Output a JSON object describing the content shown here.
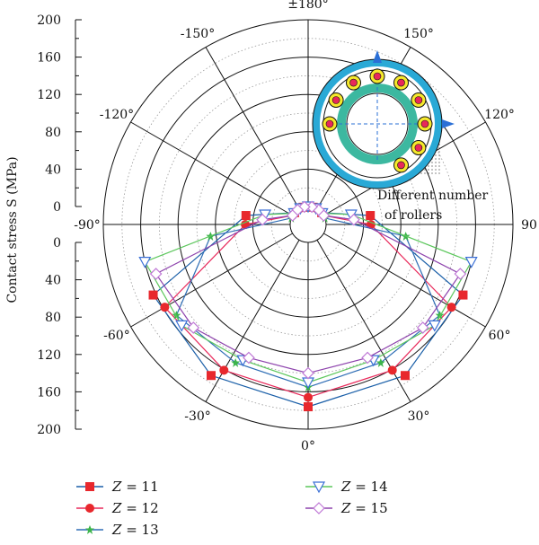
{
  "chart_data": {
    "type": "polar-line",
    "title": "",
    "ylabel": "Contact stress S (MPa)",
    "radial_range": [
      0,
      200
    ],
    "radial_ticks": [
      0,
      40,
      80,
      120,
      160,
      200
    ],
    "radial_tick_labels_upper": [
      "200",
      "160",
      "120",
      "80",
      "40",
      "0"
    ],
    "radial_tick_labels_lower": [
      "0",
      "40",
      "80",
      "120",
      "160",
      "200"
    ],
    "angle_labels": [
      {
        "angle": 0,
        "text": "0°"
      },
      {
        "angle": 30,
        "text": "30°"
      },
      {
        "angle": 60,
        "text": "60°"
      },
      {
        "angle": 90,
        "text": "90"
      },
      {
        "angle": 120,
        "text": "120°"
      },
      {
        "angle": 150,
        "text": "150°"
      },
      {
        "angle": 180,
        "text": "±180°"
      },
      {
        "angle": -150,
        "text": "-150°"
      },
      {
        "angle": -120,
        "text": "-120°"
      },
      {
        "angle": -90,
        "text": "-90°"
      },
      {
        "angle": -60,
        "text": "-60°"
      },
      {
        "angle": -30,
        "text": "-30°"
      }
    ],
    "annotation": [
      "Different number",
      "of rollers"
    ],
    "series": [
      {
        "name": "Z = 11",
        "color": "#1a5fa8",
        "marker": "square",
        "marker_color": "#e8282d",
        "points": [
          [
            0,
            176
          ],
          [
            32.7,
            173
          ],
          [
            65.5,
            163
          ],
          [
            98.2,
            48
          ],
          [
            130.9,
            0
          ],
          [
            163.6,
            0
          ],
          [
            -163.6,
            0
          ],
          [
            -130.9,
            0
          ],
          [
            -98.2,
            48
          ],
          [
            -65.5,
            163
          ],
          [
            -32.7,
            173
          ]
        ]
      },
      {
        "name": "Z = 12",
        "color": "#e8285a",
        "marker": "circle",
        "marker_color": "#e8282d",
        "points": [
          [
            0,
            166
          ],
          [
            30,
            161
          ],
          [
            60,
            158
          ],
          [
            90,
            48
          ],
          [
            120,
            0
          ],
          [
            150,
            0
          ],
          [
            180,
            0
          ],
          [
            -150,
            0
          ],
          [
            -120,
            0
          ],
          [
            -90,
            48
          ],
          [
            -60,
            158
          ],
          [
            -30,
            161
          ]
        ]
      },
      {
        "name": "Z = 13",
        "color": "#2e6db5",
        "marker": "star",
        "marker_color": "#3cb44b",
        "points": [
          [
            0,
            155
          ],
          [
            27.7,
            148
          ],
          [
            55.4,
            152
          ],
          [
            83.1,
            86
          ],
          [
            110.8,
            0
          ],
          [
            138.5,
            0
          ],
          [
            166.2,
            0
          ],
          [
            -166.2,
            0
          ],
          [
            -138.5,
            0
          ],
          [
            -110.8,
            0
          ],
          [
            -83.1,
            86
          ],
          [
            -55.4,
            152
          ],
          [
            -27.7,
            148
          ]
        ]
      },
      {
        "name": "Z = 14",
        "color": "#5cc75c",
        "marker": "triangle-down",
        "marker_color": "#3a6fd6",
        "points": [
          [
            0,
            150
          ],
          [
            25.7,
            142
          ],
          [
            51.4,
            154
          ],
          [
            77.1,
            160
          ],
          [
            102.9,
            28
          ],
          [
            128.6,
            0
          ],
          [
            154.3,
            0
          ],
          [
            180,
            0
          ],
          [
            -154.3,
            0
          ],
          [
            -128.6,
            0
          ],
          [
            -102.9,
            28
          ],
          [
            -77.1,
            160
          ],
          [
            -51.4,
            154
          ],
          [
            -25.7,
            142
          ]
        ]
      },
      {
        "name": "Z = 15",
        "color": "#8e44ad",
        "marker": "diamond",
        "marker_color": "#c07ad6",
        "points": [
          [
            0,
            140
          ],
          [
            24,
            137
          ],
          [
            48,
            146
          ],
          [
            72,
            152
          ],
          [
            96,
            30
          ],
          [
            120,
            0
          ],
          [
            144,
            0
          ],
          [
            168,
            0
          ],
          [
            -168,
            0
          ],
          [
            -144,
            0
          ],
          [
            -120,
            0
          ],
          [
            -96,
            30
          ],
          [
            -72,
            152
          ],
          [
            -48,
            146
          ],
          [
            -24,
            137
          ]
        ]
      }
    ],
    "legend": [
      "Z = 11",
      "Z = 12",
      "Z = 13",
      "Z = 14",
      "Z = 15"
    ],
    "legend_placement": "bottom",
    "grid": true
  }
}
